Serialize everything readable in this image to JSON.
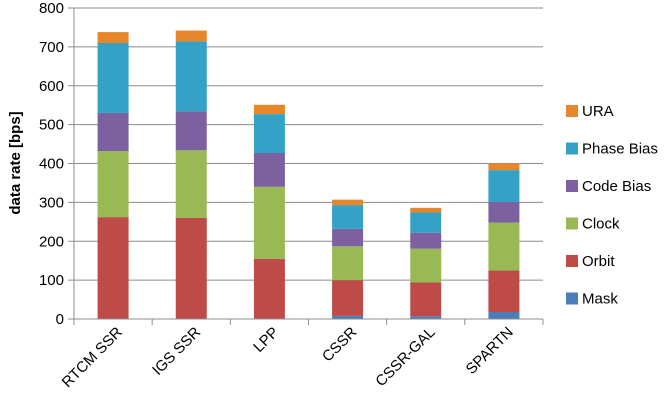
{
  "chart_data": {
    "type": "bar",
    "stacked": true,
    "title": "",
    "xlabel": "",
    "ylabel": "data rate [bps]",
    "ylim": [
      0,
      800
    ],
    "yticks": [
      0,
      100,
      200,
      300,
      400,
      500,
      600,
      700,
      800
    ],
    "grid": true,
    "legend_position": "right",
    "categories": [
      "RTCM SSR",
      "IGS SSR",
      "LPP",
      "CSSR",
      "CSSR-GAL",
      "SPARTN"
    ],
    "series": [
      {
        "name": "Mask",
        "color": "#4a7ebb",
        "values": [
          0,
          0,
          0,
          8,
          7,
          18
        ]
      },
      {
        "name": "Orbit",
        "color": "#be4b48",
        "values": [
          262,
          260,
          155,
          92,
          87,
          107
        ]
      },
      {
        "name": "Clock",
        "color": "#98b954",
        "values": [
          170,
          174,
          185,
          87,
          87,
          123
        ]
      },
      {
        "name": "Code Bias",
        "color": "#7d60a0",
        "values": [
          98,
          100,
          87,
          45,
          41,
          53
        ]
      },
      {
        "name": "Phase Bias",
        "color": "#33a2c6",
        "values": [
          180,
          180,
          100,
          61,
          52,
          82
        ]
      },
      {
        "name": "URA",
        "color": "#e7862a",
        "values": [
          28,
          28,
          24,
          14,
          12,
          17
        ]
      }
    ]
  }
}
